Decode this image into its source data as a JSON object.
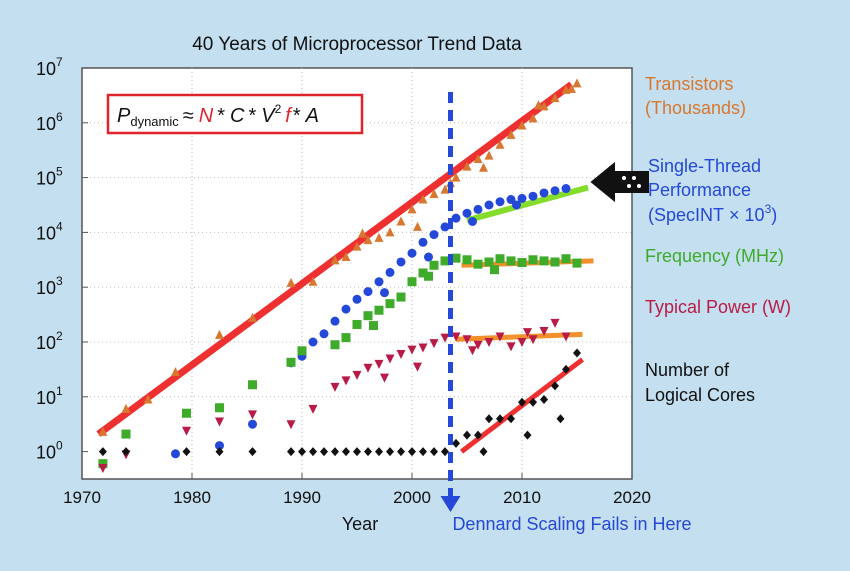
{
  "chart_data": {
    "type": "scatter",
    "title": "40 Years of Microprocessor Trend Data",
    "xlabel": "Year",
    "ylabel": "",
    "xlim": [
      1970,
      2020
    ],
    "ylim_log10": [
      -0.5,
      7
    ],
    "y_scale": "log",
    "x_ticks": [
      "1970",
      "1980",
      "1990",
      "2000",
      "2010",
      "2020"
    ],
    "y_ticks": [
      {
        "base": "10",
        "exp": "0"
      },
      {
        "base": "10",
        "exp": "1"
      },
      {
        "base": "10",
        "exp": "2"
      },
      {
        "base": "10",
        "exp": "3"
      },
      {
        "base": "10",
        "exp": "4"
      },
      {
        "base": "10",
        "exp": "5"
      },
      {
        "base": "10",
        "exp": "6"
      },
      {
        "base": "10",
        "exp": "7"
      }
    ],
    "formula": {
      "p": "P",
      "sub": "dynamic",
      "approx": "≈",
      "n": "N",
      "star1": "*",
      "c": "C",
      "star2": "*",
      "v": "V",
      "vexp": "2",
      "f": "f",
      "star3": "*",
      "a": "A"
    },
    "annotation": "Dennard Scaling Fails in Here",
    "divider_year": 2003.5,
    "series": [
      {
        "name": "Transistors",
        "label_line1": "Transistors",
        "label_line2": "(Thousands)",
        "color": "#d8772f",
        "marker": "triangle-up",
        "points": [
          [
            1971.9,
            0.36
          ],
          [
            1974,
            0.78
          ],
          [
            1976,
            0.95
          ],
          [
            1978.5,
            1.45
          ],
          [
            1982.5,
            2.13
          ],
          [
            1985.5,
            2.44
          ],
          [
            1989,
            3.08
          ],
          [
            1991,
            3.1
          ],
          [
            1993,
            3.49
          ],
          [
            1994,
            3.55
          ],
          [
            1995,
            3.74
          ],
          [
            1996,
            3.86
          ],
          [
            1997,
            3.9
          ],
          [
            1998,
            4.0
          ],
          [
            1999,
            4.2
          ],
          [
            2000,
            4.42
          ],
          [
            2001,
            4.6
          ],
          [
            2002,
            4.7
          ],
          [
            2003,
            4.78
          ],
          [
            2004,
            5.0
          ],
          [
            2005,
            5.2
          ],
          [
            2006,
            5.34
          ],
          [
            2007,
            5.4
          ],
          [
            2008,
            5.6
          ],
          [
            2009,
            5.78
          ],
          [
            2010,
            5.95
          ],
          [
            2011,
            6.08
          ],
          [
            2012,
            6.3
          ],
          [
            2013,
            6.45
          ],
          [
            2014,
            6.6
          ],
          [
            2015,
            6.72
          ],
          [
            1995.5,
            3.98
          ],
          [
            2000.5,
            4.1
          ],
          [
            2003.5,
            4.9
          ],
          [
            2006.5,
            5.18
          ],
          [
            2011.5,
            6.32
          ],
          [
            2014.5,
            6.62
          ]
        ],
        "trend": [
          [
            1971.5,
            0.32
          ],
          [
            2014.5,
            6.7
          ]
        ]
      },
      {
        "name": "Single-Thread Performance",
        "label_line1": "Single-Thread",
        "label_line2": "Performance",
        "label_line3_prefix": "(SpecINT",
        "label_line3_times": "×",
        "label_line3_base": "10",
        "label_line3_exp": "3",
        "label_line3_suffix": ")",
        "color": "#2448d8",
        "marker": "circle",
        "points": [
          [
            1978.5,
            -0.04
          ],
          [
            1982.5,
            0.11
          ],
          [
            1985.5,
            0.5
          ],
          [
            1989,
            1.62
          ],
          [
            1990,
            1.74
          ],
          [
            1991,
            2.0
          ],
          [
            1992,
            2.15
          ],
          [
            1993,
            2.38
          ],
          [
            1994,
            2.6
          ],
          [
            1995,
            2.78
          ],
          [
            1996,
            2.92
          ],
          [
            1997,
            3.1
          ],
          [
            1998,
            3.27
          ],
          [
            1999,
            3.46
          ],
          [
            2000,
            3.62
          ],
          [
            2001,
            3.82
          ],
          [
            2002,
            3.96
          ],
          [
            2003,
            4.1
          ],
          [
            2004,
            4.26
          ],
          [
            2005,
            4.35
          ],
          [
            2006,
            4.42
          ],
          [
            2007,
            4.5
          ],
          [
            2008,
            4.56
          ],
          [
            2009,
            4.6
          ],
          [
            2010,
            4.62
          ],
          [
            2011,
            4.66
          ],
          [
            2012,
            4.72
          ],
          [
            2013,
            4.76
          ],
          [
            2014,
            4.8
          ],
          [
            1997.5,
            2.9
          ],
          [
            2001.5,
            3.55
          ],
          [
            2005.5,
            4.2
          ],
          [
            2009.5,
            4.5
          ]
        ],
        "trend": [
          [
            2005,
            4.22
          ],
          [
            2016,
            4.82
          ]
        ]
      },
      {
        "name": "Frequency",
        "label_line1": "Frequency (MHz)",
        "color": "#3fab2a",
        "marker": "square",
        "points": [
          [
            1971.9,
            -0.22
          ],
          [
            1974,
            0.32
          ],
          [
            1979.5,
            0.7
          ],
          [
            1982.5,
            0.8
          ],
          [
            1985.5,
            1.22
          ],
          [
            1989,
            1.63
          ],
          [
            1990,
            1.84
          ],
          [
            1993,
            1.95
          ],
          [
            1994,
            2.08
          ],
          [
            1995,
            2.32
          ],
          [
            1996,
            2.48
          ],
          [
            1997,
            2.58
          ],
          [
            1998,
            2.7
          ],
          [
            1999,
            2.82
          ],
          [
            2000,
            3.1
          ],
          [
            2001,
            3.26
          ],
          [
            2002,
            3.4
          ],
          [
            2003,
            3.48
          ],
          [
            2004,
            3.53
          ],
          [
            2005,
            3.5
          ],
          [
            2006,
            3.42
          ],
          [
            2007,
            3.46
          ],
          [
            2008,
            3.52
          ],
          [
            2009,
            3.48
          ],
          [
            2010,
            3.45
          ],
          [
            2011,
            3.5
          ],
          [
            2012,
            3.48
          ],
          [
            2013,
            3.46
          ],
          [
            2014,
            3.52
          ],
          [
            2015,
            3.44
          ],
          [
            1996.5,
            2.3
          ],
          [
            2001.5,
            3.2
          ],
          [
            2007.5,
            3.32
          ]
        ],
        "trend": [
          [
            2004.5,
            3.4
          ],
          [
            2016.5,
            3.48
          ]
        ]
      },
      {
        "name": "Typical Power",
        "label_line1": "Typical Power (W)",
        "color": "#b81c46",
        "marker": "triangle-down",
        "points": [
          [
            1971.9,
            -0.3
          ],
          [
            1974,
            -0.05
          ],
          [
            1979.5,
            0.38
          ],
          [
            1982.5,
            0.55
          ],
          [
            1985.5,
            0.68
          ],
          [
            1989,
            0.5
          ],
          [
            1991,
            0.78
          ],
          [
            1993,
            1.18
          ],
          [
            1994,
            1.3
          ],
          [
            1995,
            1.4
          ],
          [
            1996,
            1.53
          ],
          [
            1997,
            1.6
          ],
          [
            1998,
            1.7
          ],
          [
            1999,
            1.78
          ],
          [
            2000,
            1.86
          ],
          [
            2001,
            1.9
          ],
          [
            2002,
            1.98
          ],
          [
            2003,
            2.08
          ],
          [
            2004,
            2.1
          ],
          [
            2005,
            2.05
          ],
          [
            2006,
            1.95
          ],
          [
            2007,
            2.0
          ],
          [
            2008,
            2.1
          ],
          [
            2009,
            1.92
          ],
          [
            2010,
            2.0
          ],
          [
            2011,
            2.05
          ],
          [
            2012,
            2.2
          ],
          [
            2013,
            2.35
          ],
          [
            2014,
            2.1
          ],
          [
            1997.5,
            1.35
          ],
          [
            2000.5,
            1.55
          ],
          [
            2005.5,
            1.85
          ],
          [
            2010.5,
            2.18
          ]
        ],
        "trend": [
          [
            2004,
            2.05
          ],
          [
            2015.5,
            2.14
          ]
        ]
      },
      {
        "name": "Number of Logical Cores",
        "label_line1": "Number of",
        "label_line2": "Logical Cores",
        "color": "#111111",
        "marker": "diamond",
        "points": [
          [
            1971.9,
            0
          ],
          [
            1974,
            0
          ],
          [
            1979.5,
            0
          ],
          [
            1982.5,
            0
          ],
          [
            1985.5,
            0
          ],
          [
            1989,
            0
          ],
          [
            1990,
            0
          ],
          [
            1991,
            0
          ],
          [
            1992,
            0
          ],
          [
            1993,
            0
          ],
          [
            1994,
            0
          ],
          [
            1995,
            0
          ],
          [
            1996,
            0
          ],
          [
            1997,
            0
          ],
          [
            1998,
            0
          ],
          [
            1999,
            0
          ],
          [
            2000,
            0
          ],
          [
            2001,
            0
          ],
          [
            2002,
            0
          ],
          [
            2003,
            0
          ],
          [
            2004,
            0.15
          ],
          [
            2005,
            0.3
          ],
          [
            2006,
            0.3
          ],
          [
            2007,
            0.6
          ],
          [
            2008,
            0.6
          ],
          [
            2009,
            0.6
          ],
          [
            2010,
            0.9
          ],
          [
            2011,
            0.9
          ],
          [
            2012,
            0.95
          ],
          [
            2013,
            1.2
          ],
          [
            2014,
            1.5
          ],
          [
            2015,
            1.8
          ],
          [
            2006.5,
            0.0
          ],
          [
            2010.5,
            0.3
          ],
          [
            2013.5,
            0.6
          ]
        ],
        "trend": [
          [
            2004.5,
            0.0
          ],
          [
            2015.5,
            1.68
          ]
        ]
      }
    ]
  }
}
